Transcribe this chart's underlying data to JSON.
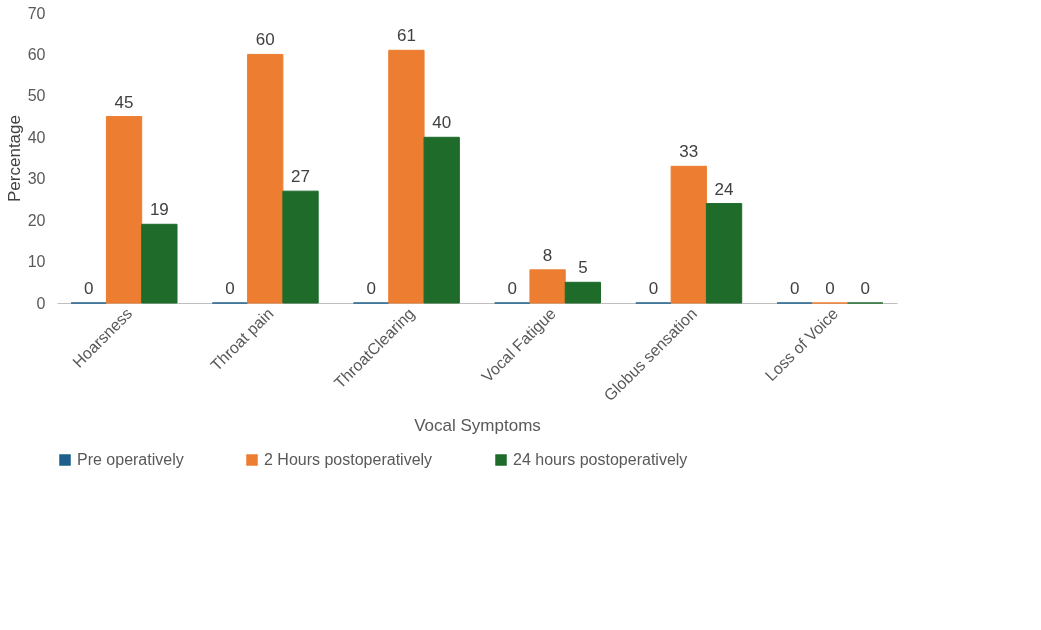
{
  "chart_data": {
    "type": "bar",
    "xlabel": "Vocal Symptoms",
    "ylabel": "Percentage",
    "categories": [
      "Hoarsness",
      "Throat pain",
      "ThroatClearing",
      "Vocal Fatigue",
      "Globus sensation",
      "Loss of Voice"
    ],
    "series": [
      {
        "name": "Pre operatively",
        "color": "#1f5f8b",
        "values": [
          0,
          0,
          0,
          0,
          0,
          0
        ]
      },
      {
        "name": "2 Hours postoperatively",
        "color": "#ed7d31",
        "values": [
          45,
          60,
          61,
          8,
          33,
          0
        ]
      },
      {
        "name": "24 hours postoperatively",
        "color": "#1e6b2a",
        "values": [
          19,
          27,
          40,
          5,
          24,
          0
        ]
      }
    ],
    "ylim": [
      0,
      70
    ],
    "yticks": [
      0,
      10,
      20,
      30,
      40,
      50,
      60,
      70
    ],
    "grid": false,
    "legend": "bottom",
    "data_labels": true
  }
}
